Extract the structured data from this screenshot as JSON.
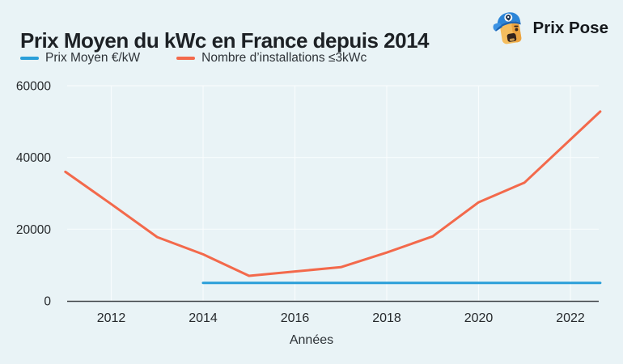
{
  "page": {
    "background": "#e9f3f6"
  },
  "header": {
    "title": "Prix Moyen du kWc en France depuis 2014",
    "logo": {
      "text": "Prix Pose",
      "icon": "prix-pose-mascot-icon"
    }
  },
  "legend": {
    "items": [
      {
        "label": "Prix Moyen €/kW",
        "color": "#2b9fd9"
      },
      {
        "label": "Nombre d’installations ≤3kWc",
        "color": "#f3694b"
      }
    ]
  },
  "chart_data": {
    "type": "line",
    "title": "Prix Moyen du kWc en France depuis 2014",
    "xlabel": "Années",
    "ylabel": "",
    "grid": true,
    "legend_position": "top",
    "xlim": [
      2011,
      2022.65
    ],
    "ylim": [
      0,
      60000
    ],
    "x_ticks": [
      2012,
      2014,
      2016,
      2018,
      2020,
      2022
    ],
    "y_ticks": [
      0,
      20000,
      40000,
      60000
    ],
    "series": [
      {
        "name": "Prix Moyen €/kW",
        "color": "#2b9fd9",
        "x": [
          2014,
          2022.65
        ],
        "y": [
          5000,
          5000
        ]
      },
      {
        "name": "Nombre d’installations ≤3kWc",
        "color": "#f3694b",
        "x": [
          2011,
          2012,
          2013,
          2014,
          2015,
          2016,
          2017,
          2018,
          2019,
          2020,
          2021,
          2022.65
        ],
        "y": [
          36000,
          27000,
          17800,
          13000,
          7000,
          8200,
          9400,
          13500,
          18000,
          27500,
          33000,
          52800
        ]
      }
    ],
    "colors": {
      "background": "#e9f3f6",
      "gridline": "#f8fcfd",
      "axis_line": "#3e4347",
      "tick_text": "#26292c",
      "title_text": "#1d2125"
    }
  }
}
